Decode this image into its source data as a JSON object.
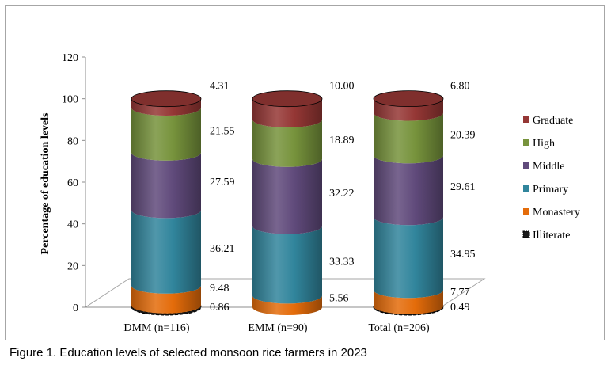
{
  "caption": "Figure 1. Education levels of selected monsoon rice farmers in 2023",
  "chart_data": {
    "type": "bar",
    "subtype": "stacked-cylinder-3d",
    "title": "",
    "xlabel": "",
    "ylabel": "Percentage of education levels",
    "ylim": [
      0,
      120
    ],
    "yticks": [
      0,
      20,
      40,
      60,
      80,
      100,
      120
    ],
    "grid": false,
    "legend_position": "right",
    "categories": [
      "DMM (n=116)",
      "EMM (n=90)",
      "Total (n=206)"
    ],
    "series": [
      {
        "name": "Illiterate",
        "color": "#1a1a1a",
        "values": [
          0.86,
          0.0,
          0.49
        ]
      },
      {
        "name": "Monastery",
        "color": "#e46c0a",
        "values": [
          9.48,
          5.56,
          7.77
        ]
      },
      {
        "name": "Primary",
        "color": "#31859c",
        "values": [
          36.21,
          33.33,
          34.95
        ]
      },
      {
        "name": "Middle",
        "color": "#604a7b",
        "values": [
          27.59,
          32.22,
          29.61
        ]
      },
      {
        "name": "High",
        "color": "#77933c",
        "values": [
          21.55,
          18.89,
          20.39
        ]
      },
      {
        "name": "Graduate",
        "color": "#953735",
        "values": [
          4.31,
          10.0,
          6.8
        ]
      }
    ],
    "data_labels": [
      [
        "0.86",
        "9.48",
        "36.21",
        "27.59",
        "21.55",
        "4.31"
      ],
      [
        "",
        "5.56",
        "33.33",
        "32.22",
        "18.89",
        "10.00"
      ],
      [
        "0.49",
        "7.77",
        "34.95",
        "29.61",
        "20.39",
        "6.80"
      ]
    ],
    "legend_order": [
      "Graduate",
      "High",
      "Middle",
      "Primary",
      "Monastery",
      "Illiterate"
    ]
  }
}
